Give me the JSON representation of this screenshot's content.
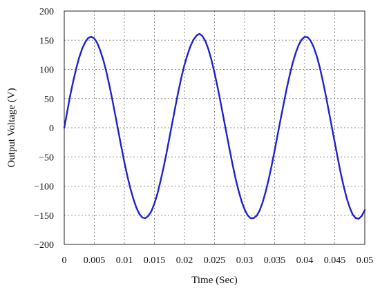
{
  "chart_data": {
    "type": "line",
    "title": "",
    "xlabel": "Time (Sec)",
    "ylabel": "Output Voltage (V)",
    "xlim": [
      0,
      0.05
    ],
    "ylim": [
      -200,
      200
    ],
    "x_ticks": [
      0,
      0.005,
      0.01,
      0.015,
      0.02,
      0.025,
      0.03,
      0.035,
      0.04,
      0.045,
      0.05
    ],
    "x_tick_labels": [
      "0",
      "0.005",
      "0.01",
      "0.015",
      "0.02",
      "0.025",
      "0.03",
      "0.035",
      "0.04",
      "0.045",
      "0.05"
    ],
    "y_ticks": [
      200,
      150,
      100,
      50,
      0,
      -50,
      -100,
      -150,
      -200
    ],
    "y_tick_labels": [
      "200",
      "150",
      "100",
      "50",
      "0",
      "−50",
      "−100",
      "−150",
      "−200"
    ],
    "grid": true,
    "legend": "none",
    "series": [
      {
        "color": "#1f1fd0",
        "x": [
          0,
          0.0005,
          0.001,
          0.0015,
          0.002,
          0.0025,
          0.003,
          0.0035,
          0.004,
          0.0045,
          0.005,
          0.0055,
          0.006,
          0.0065,
          0.007,
          0.0075,
          0.008,
          0.0085,
          0.009,
          0.0095,
          0.01,
          0.0105,
          0.011,
          0.0115,
          0.012,
          0.0125,
          0.013,
          0.0135,
          0.014,
          0.0145,
          0.015,
          0.0155,
          0.016,
          0.0165,
          0.017,
          0.0175,
          0.018,
          0.0185,
          0.019,
          0.0195,
          0.02,
          0.0205,
          0.021,
          0.0215,
          0.022,
          0.0225,
          0.023,
          0.0235,
          0.024,
          0.0245,
          0.025,
          0.0255,
          0.026,
          0.0265,
          0.027,
          0.0275,
          0.028,
          0.0285,
          0.029,
          0.0295,
          0.03,
          0.0305,
          0.031,
          0.0315,
          0.032,
          0.0325,
          0.033,
          0.0335,
          0.034,
          0.0345,
          0.035,
          0.0355,
          0.036,
          0.0365,
          0.037,
          0.0375,
          0.038,
          0.0385,
          0.039,
          0.0395,
          0.04,
          0.0405,
          0.041,
          0.0415,
          0.042,
          0.0425,
          0.043,
          0.0435,
          0.044,
          0.0445,
          0.045,
          0.0455,
          0.046,
          0.0465,
          0.047,
          0.0475,
          0.048,
          0.0485,
          0.049,
          0.0495,
          0.05
        ],
        "y": [
          0,
          28,
          56,
          80,
          102,
          121,
          136,
          147,
          154,
          156,
          153,
          145,
          132,
          116,
          96,
          73,
          48,
          21,
          -6,
          -33,
          -59,
          -83,
          -104,
          -122,
          -137,
          -148,
          -154,
          -155,
          -151,
          -143,
          -130,
          -113,
          -92,
          -69,
          -44,
          -17,
          10,
          37,
          63,
          87,
          108,
          125,
          140,
          151,
          158,
          161,
          157,
          148,
          134,
          116,
          94,
          70,
          44,
          17,
          -10,
          -37,
          -63,
          -87,
          -108,
          -126,
          -140,
          -150,
          -155,
          -155,
          -151,
          -142,
          -128,
          -110,
          -89,
          -65,
          -39,
          -12,
          15,
          41,
          67,
          90,
          111,
          128,
          142,
          151,
          156,
          155,
          149,
          138,
          123,
          104,
          81,
          56,
          29,
          2,
          -25,
          -52,
          -78,
          -101,
          -121,
          -137,
          -149,
          -155,
          -156,
          -151,
          -141
        ]
      }
    ]
  }
}
